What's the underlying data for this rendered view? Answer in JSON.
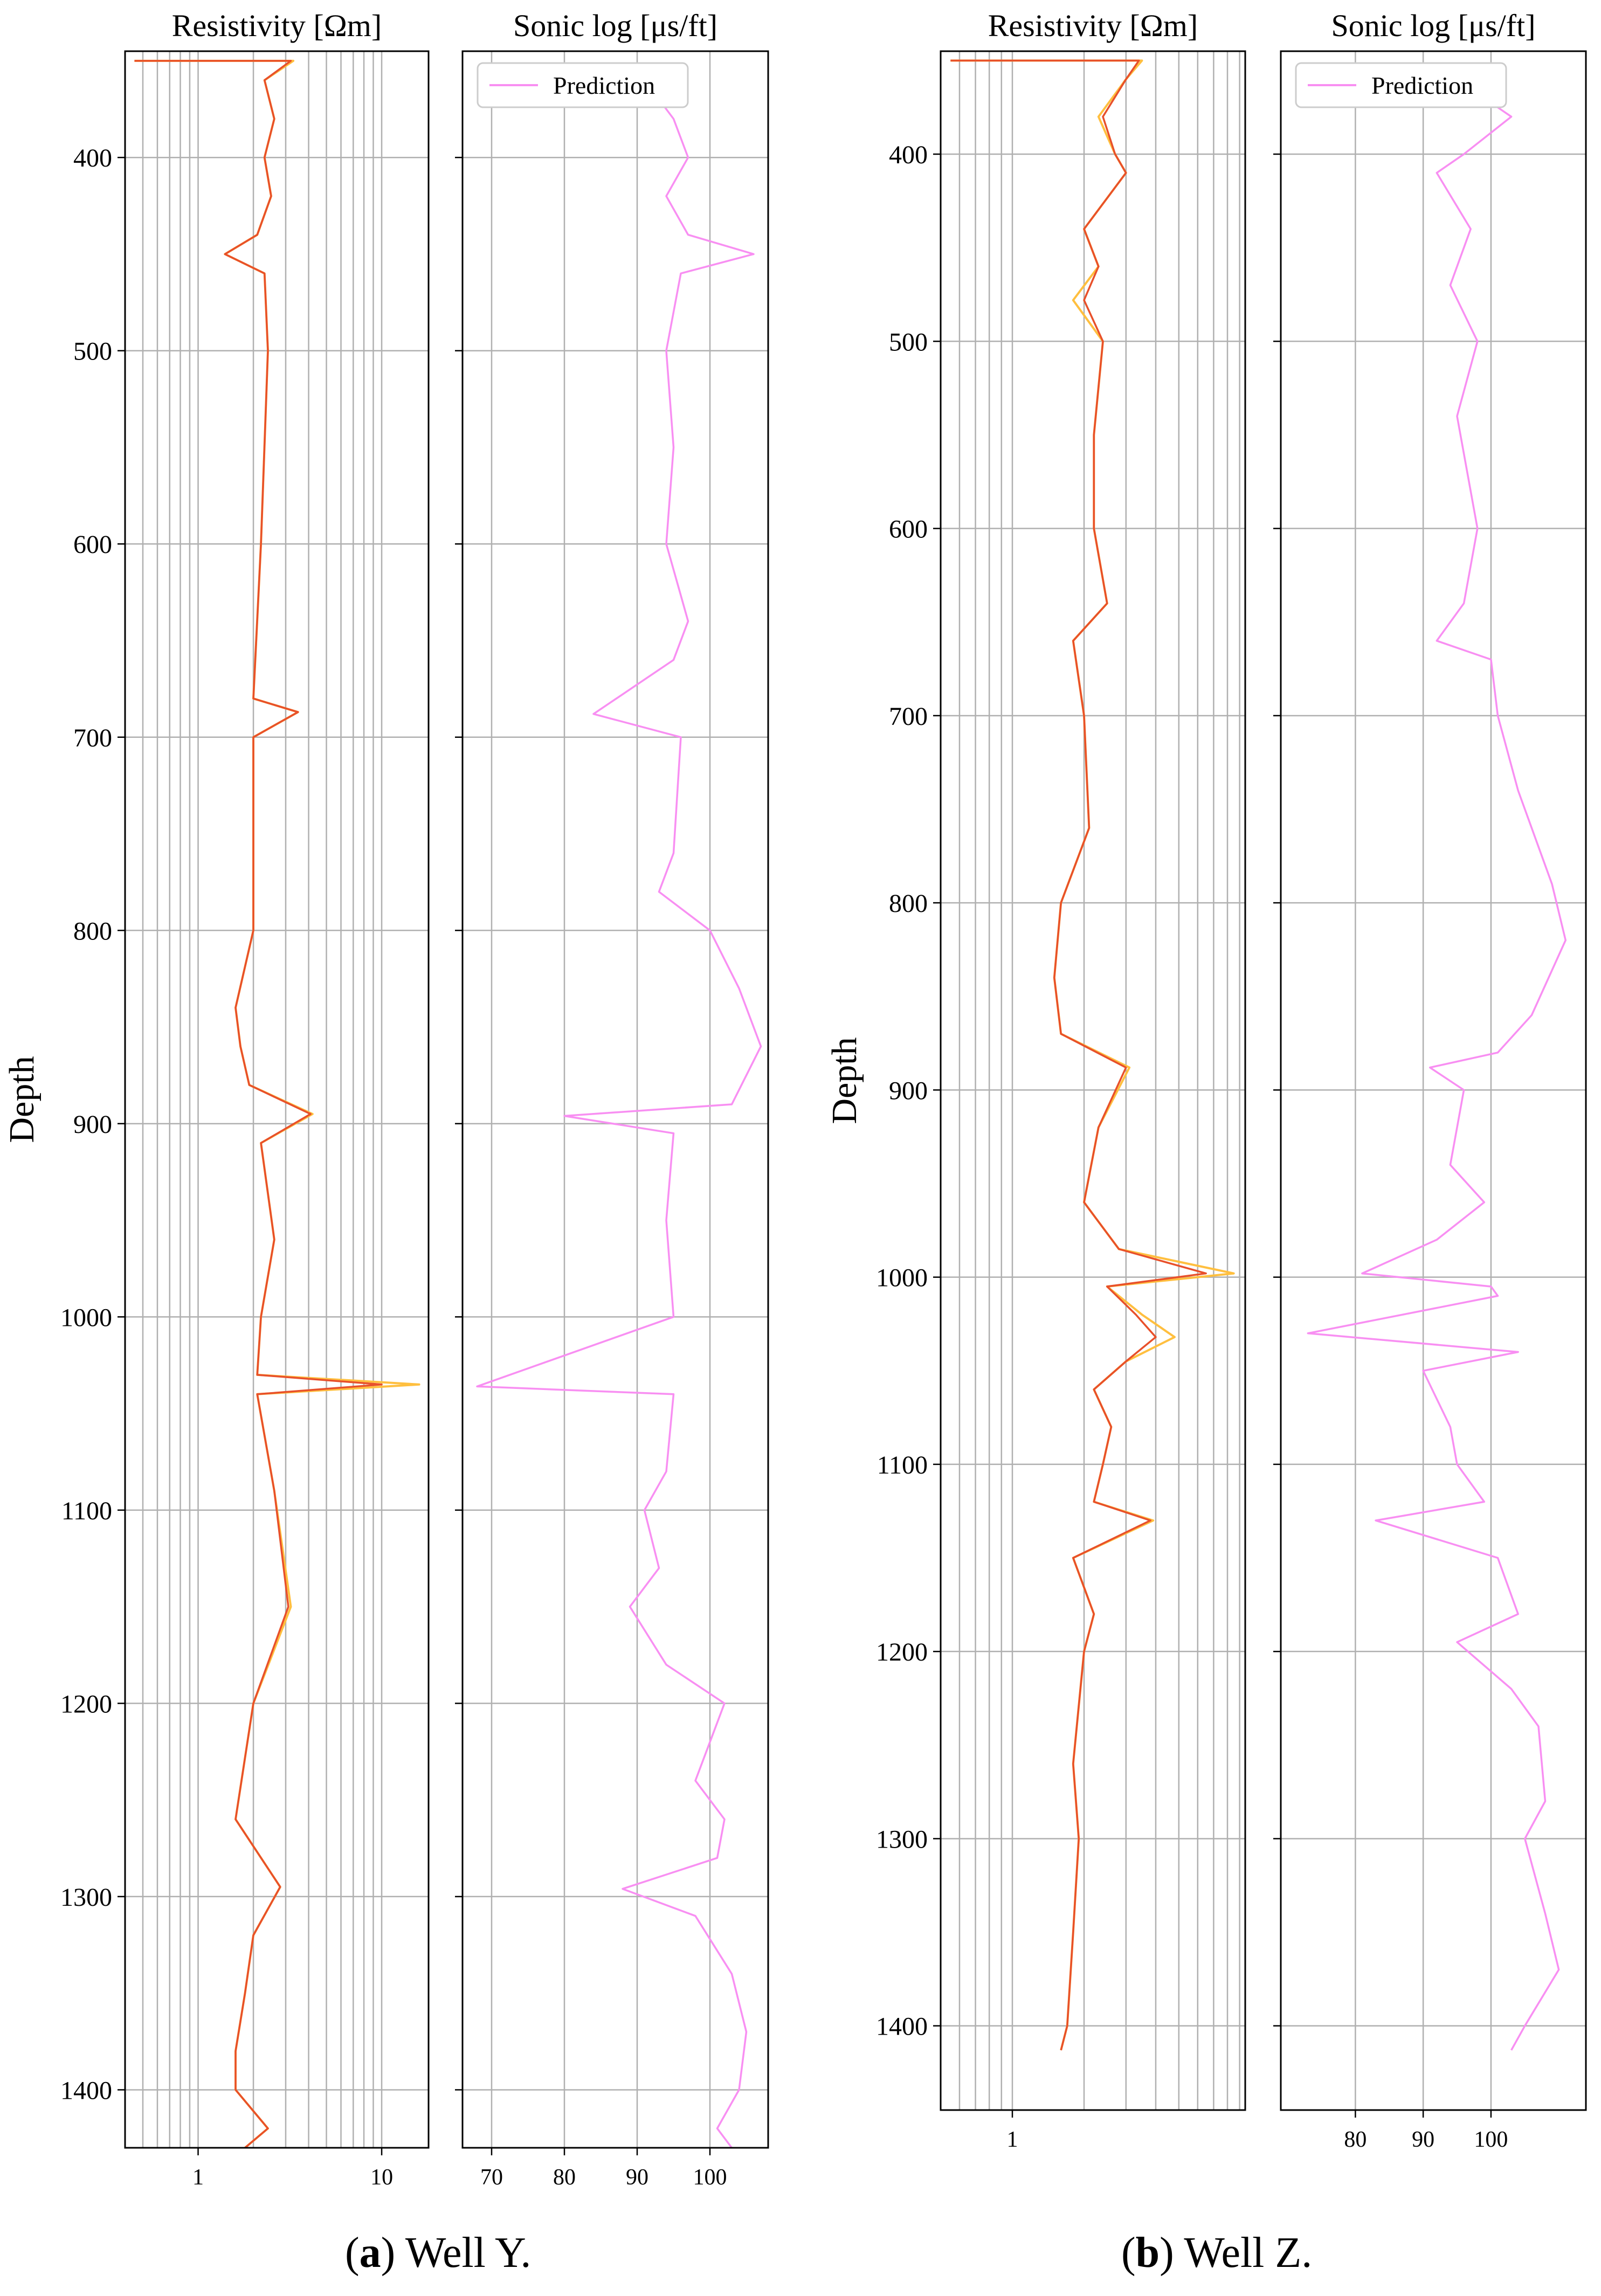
{
  "captions": {
    "a": {
      "letter": "a",
      "text": "Well Y."
    },
    "b": {
      "letter": "b",
      "text": "Well Z."
    }
  },
  "colors": {
    "resistivity_main": "#e8502a",
    "resistivity_secondary": "#ffbf3f",
    "sonic_prediction": "#f88ff2",
    "grid": "#b0b0b0"
  },
  "chart_data": [
    {
      "type": "line",
      "panel": "Well Y. — Resistivity",
      "title": "Resistivity [Ωm]",
      "ylabel": "Depth",
      "xscale": "log",
      "xlim": [
        0.4,
        18
      ],
      "ylim": [
        1430,
        345
      ],
      "y_inverted": true,
      "xticks": [
        1,
        10
      ],
      "yticks": [
        400,
        500,
        600,
        700,
        800,
        900,
        1000,
        1100,
        1200,
        1300,
        1400
      ],
      "grid": true,
      "series": [
        {
          "role": "secondary",
          "depth": [
            350,
            350,
            360,
            380,
            400,
            420,
            440,
            450,
            460,
            500,
            600,
            680,
            687,
            700,
            800,
            840,
            860,
            880,
            895,
            910,
            960,
            1000,
            1030,
            1035,
            1040,
            1090,
            1150,
            1200,
            1260,
            1295,
            1320,
            1350,
            1380,
            1400,
            1420,
            1430
          ],
          "values": [
            0.45,
            3.3,
            2.3,
            2.6,
            2.3,
            2.5,
            2.1,
            1.4,
            2.3,
            2.4,
            2.2,
            2.0,
            3.5,
            2.0,
            2.0,
            1.6,
            1.7,
            1.9,
            4.2,
            2.2,
            2.6,
            2.2,
            2.1,
            16.0,
            2.1,
            2.6,
            3.2,
            2.0,
            1.6,
            2.8,
            2.0,
            1.8,
            1.6,
            1.6,
            2.4,
            1.8
          ]
        },
        {
          "role": "main",
          "depth": [
            350,
            350,
            360,
            380,
            400,
            420,
            440,
            450,
            460,
            500,
            600,
            680,
            687,
            700,
            800,
            840,
            860,
            880,
            895,
            910,
            960,
            1000,
            1030,
            1035,
            1040,
            1090,
            1150,
            1200,
            1260,
            1295,
            1320,
            1350,
            1380,
            1400,
            1420,
            1430
          ],
          "values": [
            0.45,
            3.2,
            2.3,
            2.6,
            2.3,
            2.5,
            2.1,
            1.4,
            2.3,
            2.4,
            2.2,
            2.0,
            3.5,
            2.0,
            2.0,
            1.6,
            1.7,
            1.9,
            4.1,
            2.2,
            2.6,
            2.2,
            2.1,
            10.0,
            2.1,
            2.6,
            3.1,
            2.0,
            1.6,
            2.8,
            2.0,
            1.8,
            1.6,
            1.6,
            2.4,
            1.8
          ]
        }
      ]
    },
    {
      "type": "line",
      "panel": "Well Y. — Sonic log",
      "title": "Sonic log [μs/ft]",
      "xlim": [
        66,
        108
      ],
      "ylim": [
        1430,
        345
      ],
      "y_inverted": true,
      "xticks": [
        70,
        80,
        90,
        100
      ],
      "yticks": [
        400,
        500,
        600,
        700,
        800,
        900,
        1000,
        1100,
        1200,
        1300,
        1400
      ],
      "legend": {
        "position": "top-left",
        "entries": [
          "Prediction"
        ]
      },
      "grid": true,
      "series": [
        {
          "name": "Prediction",
          "depth": [
            365,
            380,
            400,
            420,
            440,
            450,
            460,
            500,
            550,
            600,
            640,
            660,
            688,
            700,
            760,
            780,
            800,
            830,
            860,
            890,
            896,
            905,
            950,
            1000,
            1036,
            1040,
            1080,
            1100,
            1130,
            1150,
            1180,
            1200,
            1240,
            1260,
            1280,
            1296,
            1310,
            1340,
            1370,
            1400,
            1420,
            1430
          ],
          "values": [
            92,
            95,
            97,
            94,
            97,
            106,
            96,
            94,
            95,
            94,
            97,
            95,
            84,
            96,
            95,
            93,
            100,
            104,
            107,
            103,
            80,
            95,
            94,
            95,
            68,
            95,
            94,
            91,
            93,
            89,
            94,
            102,
            98,
            102,
            101,
            88,
            98,
            103,
            105,
            104,
            101,
            103
          ]
        }
      ]
    },
    {
      "type": "line",
      "panel": "Well Z. — Resistivity",
      "title": "Resistivity [Ωm]",
      "ylabel": "Depth",
      "xscale": "log",
      "xlim": [
        0.5,
        9.5
      ],
      "ylim": [
        1445,
        345
      ],
      "y_inverted": true,
      "xticks": [
        1
      ],
      "yticks": [
        400,
        500,
        600,
        700,
        800,
        900,
        1000,
        1100,
        1200,
        1300,
        1400
      ],
      "grid": true,
      "series": [
        {
          "role": "secondary",
          "depth": [
            350,
            350,
            360,
            380,
            400,
            410,
            440,
            460,
            478,
            500,
            550,
            600,
            640,
            660,
            700,
            760,
            800,
            840,
            870,
            888,
            920,
            960,
            985,
            998,
            1005,
            1020,
            1032,
            1045,
            1060,
            1080,
            1100,
            1120,
            1130,
            1150,
            1180,
            1200,
            1260,
            1300,
            1350,
            1400,
            1413
          ],
          "values": [
            0.55,
            3.5,
            3.0,
            2.3,
            2.7,
            3.0,
            2.0,
            2.3,
            1.8,
            2.4,
            2.2,
            2.2,
            2.5,
            1.8,
            2.0,
            2.1,
            1.6,
            1.5,
            1.6,
            3.1,
            2.3,
            2.0,
            2.8,
            8.5,
            2.5,
            3.5,
            4.8,
            3.0,
            2.2,
            2.6,
            2.4,
            2.2,
            3.9,
            1.8,
            2.2,
            2.0,
            1.8,
            1.9,
            1.8,
            1.7,
            1.6
          ]
        },
        {
          "role": "main",
          "depth": [
            350,
            350,
            360,
            380,
            400,
            410,
            440,
            460,
            478,
            500,
            550,
            600,
            640,
            660,
            700,
            760,
            800,
            840,
            870,
            888,
            920,
            960,
            985,
            998,
            1005,
            1020,
            1032,
            1045,
            1060,
            1080,
            1100,
            1120,
            1130,
            1150,
            1180,
            1200,
            1260,
            1300,
            1350,
            1400,
            1413
          ],
          "values": [
            0.55,
            3.4,
            3.0,
            2.4,
            2.7,
            3.0,
            2.0,
            2.3,
            2.0,
            2.4,
            2.2,
            2.2,
            2.5,
            1.8,
            2.0,
            2.1,
            1.6,
            1.5,
            1.6,
            3.0,
            2.3,
            2.0,
            2.8,
            6.5,
            2.5,
            3.3,
            4.0,
            3.0,
            2.2,
            2.6,
            2.4,
            2.2,
            3.8,
            1.8,
            2.2,
            2.0,
            1.8,
            1.9,
            1.8,
            1.7,
            1.6
          ]
        }
      ]
    },
    {
      "type": "line",
      "panel": "Well Z. — Sonic log",
      "title": "Sonic log [μs/ft]",
      "xlim": [
        69,
        114
      ],
      "ylim": [
        1445,
        345
      ],
      "y_inverted": true,
      "xticks": [
        80,
        90,
        100
      ],
      "yticks": [
        400,
        500,
        600,
        700,
        800,
        900,
        1000,
        1100,
        1200,
        1300,
        1400
      ],
      "legend": {
        "position": "top-left",
        "entries": [
          "Prediction"
        ]
      },
      "grid": true,
      "series": [
        {
          "name": "Prediction",
          "depth": [
            360,
            380,
            400,
            410,
            440,
            470,
            500,
            540,
            600,
            640,
            660,
            670,
            700,
            740,
            790,
            820,
            860,
            880,
            888,
            900,
            940,
            960,
            980,
            998,
            1005,
            1010,
            1030,
            1040,
            1050,
            1080,
            1100,
            1120,
            1130,
            1150,
            1180,
            1195,
            1220,
            1240,
            1280,
            1300,
            1340,
            1370,
            1400,
            1413
          ],
          "values": [
            95,
            103,
            96,
            92,
            97,
            94,
            98,
            95,
            98,
            96,
            92,
            100,
            101,
            104,
            109,
            111,
            106,
            101,
            91,
            96,
            94,
            99,
            92,
            81,
            100,
            101,
            73,
            104,
            90,
            94,
            95,
            99,
            83,
            101,
            104,
            95,
            103,
            107,
            108,
            105,
            108,
            110,
            105,
            103
          ]
        }
      ]
    }
  ]
}
